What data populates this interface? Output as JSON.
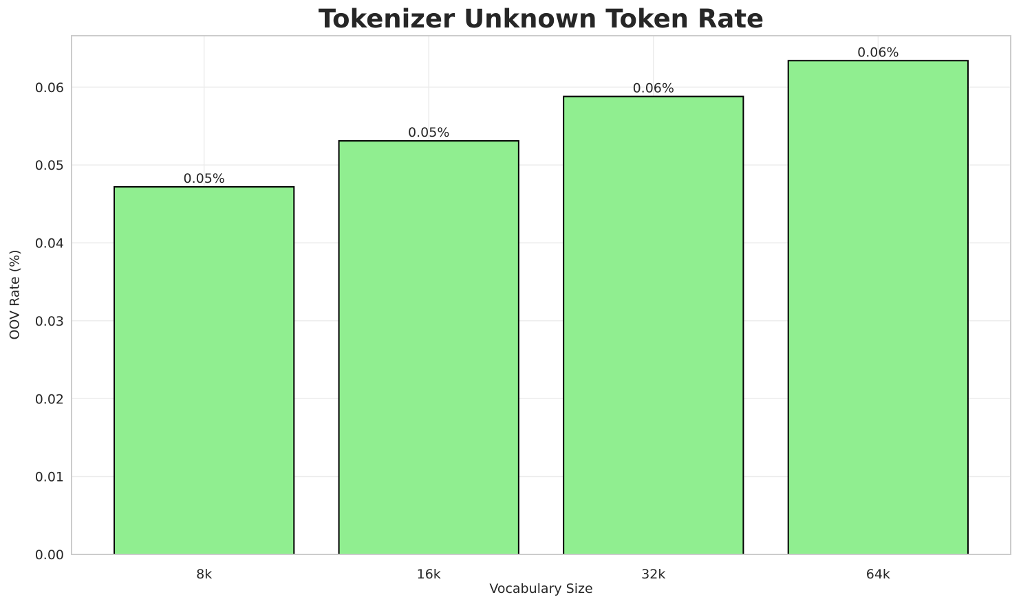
{
  "figure": {
    "background": "#ffffff"
  },
  "chart_data": {
    "type": "bar",
    "title": "Tokenizer Unknown Token Rate",
    "xlabel": "Vocabulary Size",
    "ylabel": "OOV Rate (%)",
    "categories": [
      "8k",
      "16k",
      "32k",
      "64k"
    ],
    "values": [
      0.0472,
      0.0531,
      0.0588,
      0.0634
    ],
    "bar_labels": [
      "0.05%",
      "0.05%",
      "0.06%",
      "0.06%"
    ],
    "ylim": [
      0,
      0.0666
    ],
    "ytick_values": [
      0,
      0.01,
      0.02,
      0.03,
      0.04,
      0.05,
      0.06
    ],
    "ytick_labels": [
      "0.00",
      "0.01",
      "0.02",
      "0.03",
      "0.04",
      "0.05",
      "0.06"
    ],
    "grid": true,
    "legend": "none",
    "bar_width_fraction": 0.8,
    "bar_color": "#90EE90",
    "bar_edge_color": "#000000",
    "bar_edge_width": 2,
    "grid_color": "#ececec",
    "spine_color": "#cccccc",
    "text_color": "#262626"
  }
}
